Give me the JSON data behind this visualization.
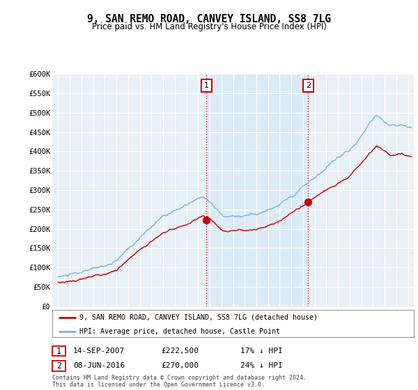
{
  "title": "9, SAN REMO ROAD, CANVEY ISLAND, SS8 7LG",
  "subtitle": "Price paid vs. HM Land Registry's House Price Index (HPI)",
  "ylim": [
    0,
    600000
  ],
  "yticks": [
    0,
    50000,
    100000,
    150000,
    200000,
    250000,
    300000,
    350000,
    400000,
    450000,
    500000,
    550000,
    600000
  ],
  "ytick_labels": [
    "£0",
    "£50K",
    "£100K",
    "£150K",
    "£200K",
    "£250K",
    "£300K",
    "£350K",
    "£400K",
    "£450K",
    "£500K",
    "£550K",
    "£600K"
  ],
  "xlim_start": 1994.5,
  "xlim_end": 2025.5,
  "hpi_color": "#7ab5d8",
  "price_color": "#cc0000",
  "shade_color": "#d6e9f5",
  "transaction_1": {
    "date_num": 2007.71,
    "price": 222500,
    "label": "1"
  },
  "transaction_2": {
    "date_num": 2016.44,
    "price": 270000,
    "label": "2"
  },
  "legend_line1": "9, SAN REMO ROAD, CANVEY ISLAND, SS8 7LG (detached house)",
  "legend_line2": "HPI: Average price, detached house, Castle Point",
  "table_row1": [
    "1",
    "14-SEP-2007",
    "£222,500",
    "17% ↓ HPI"
  ],
  "table_row2": [
    "2",
    "08-JUN-2016",
    "£270,000",
    "24% ↓ HPI"
  ],
  "footer": "Contains HM Land Registry data © Crown copyright and database right 2024.\nThis data is licensed under the Open Government Licence v3.0.",
  "bg_color": "#ffffff",
  "plot_bg_color": "#e8f0f8",
  "grid_color": "#ffffff"
}
